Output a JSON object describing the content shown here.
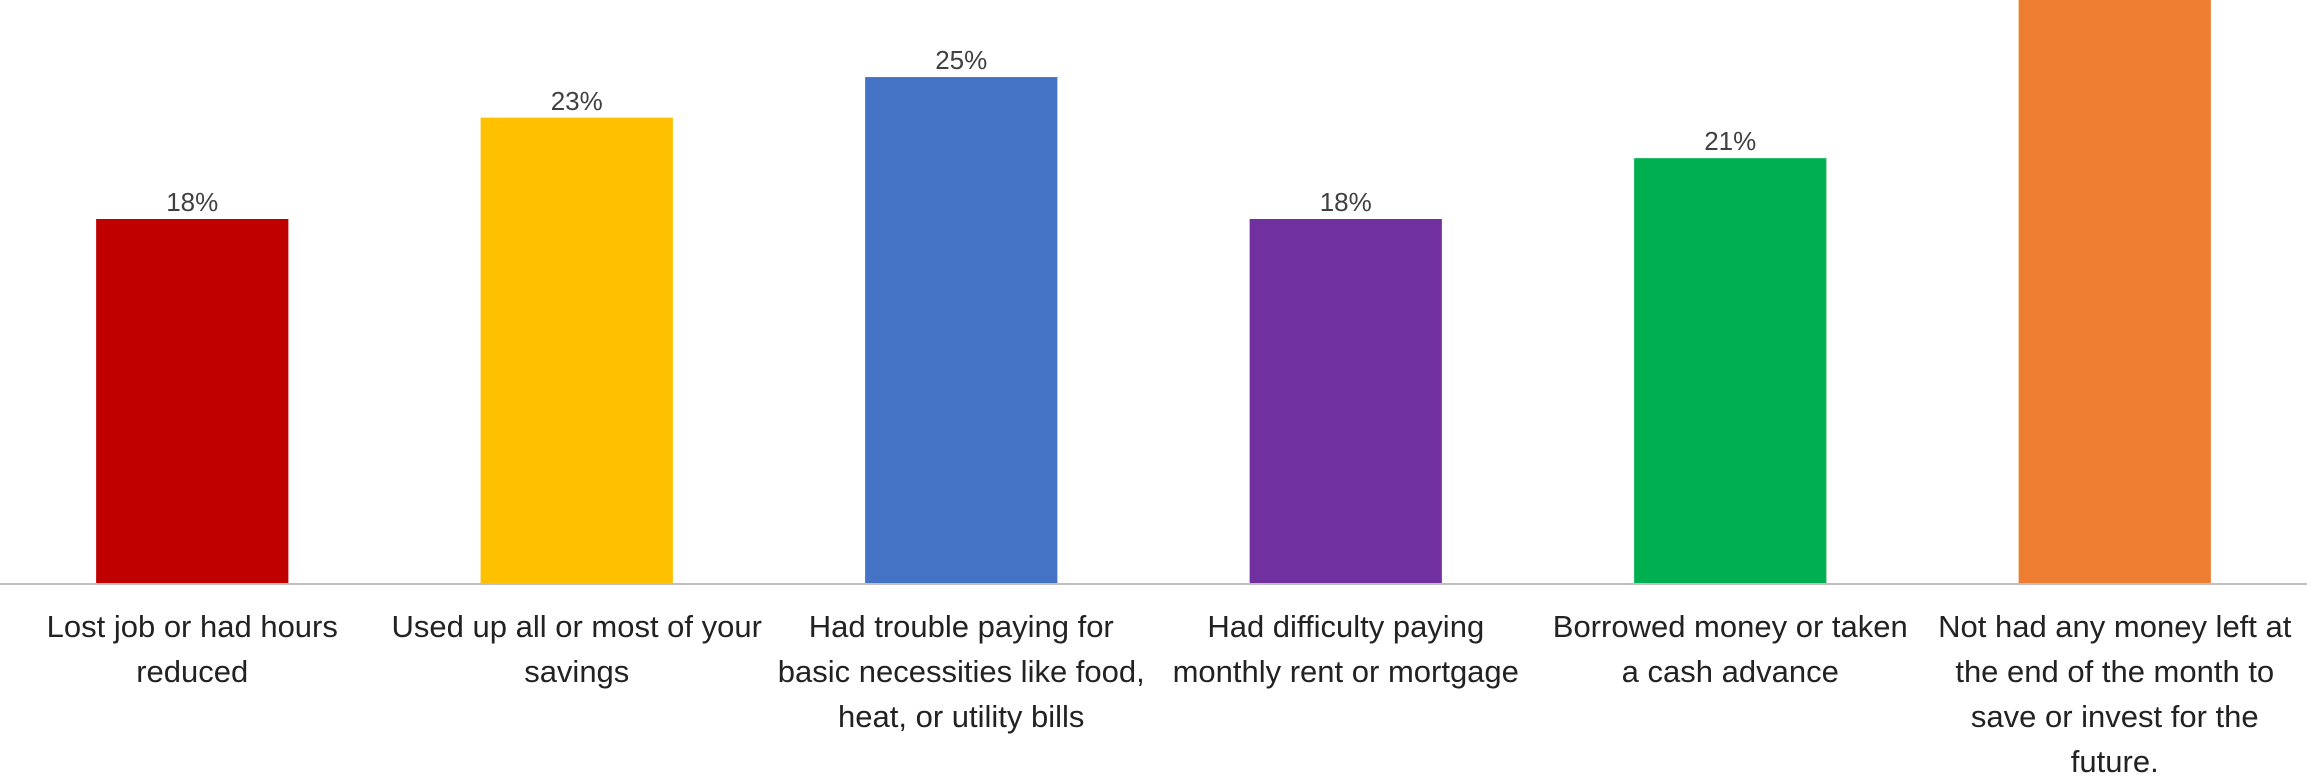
{
  "chart_data": {
    "type": "bar",
    "categories": [
      "Lost job or had hours reduced",
      "Used up all or most of your savings",
      "Had trouble paying for basic necessities like food, heat, or utility bills",
      "Had difficulty paying monthly rent or mortgage",
      "Borrowed money or taken a cash advance",
      "Not had any money left at the end of the month to save or invest for the future."
    ],
    "values": [
      18,
      23,
      25,
      18,
      21,
      30
    ],
    "value_labels": [
      "18%",
      "23%",
      "25%",
      "18%",
      "21%",
      null
    ],
    "colors": [
      "#c00000",
      "#ffc000",
      "#4472c4",
      "#7030a0",
      "#00b050",
      "#ed7d31"
    ],
    "ylim": [
      0,
      28.8
    ]
  }
}
